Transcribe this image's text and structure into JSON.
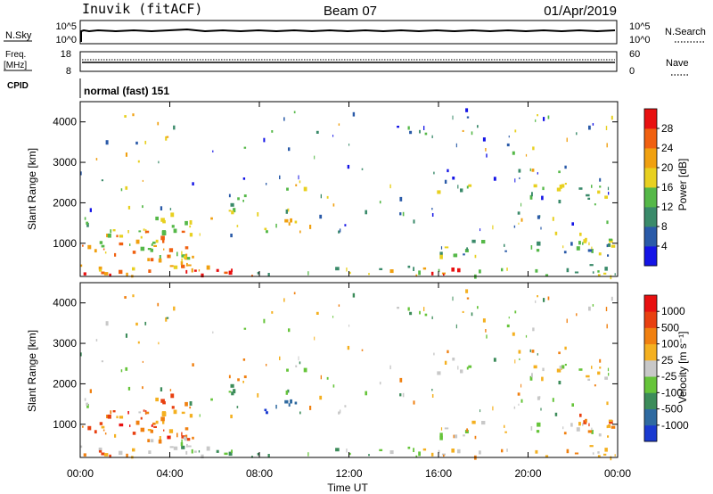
{
  "header": {
    "station": "Inuvik (fitACF)",
    "beam": "Beam 07",
    "date": "01/Apr/2019"
  },
  "strips": {
    "nsky": {
      "label": "N.Sky",
      "tick_top": "10^5",
      "tick_bottom": "10^0"
    },
    "nsearch": {
      "label": "N.Search",
      "tick_top": "10^5",
      "tick_bottom": "10^0"
    },
    "freq": {
      "label_line1": "Freq.",
      "label_line2": "[MHz]",
      "tick_top": "18",
      "tick_bottom": "8"
    },
    "nave": {
      "label": "Nave",
      "tick_top": "60",
      "tick_bottom": "0"
    },
    "cpid": {
      "label": "CPID",
      "value": "normal (fast) 151"
    }
  },
  "chart_data": [
    {
      "type": "heatmap",
      "quantity": "Power",
      "ylabel": "Slant Range [km]",
      "xlabel": "",
      "ylim": [
        180,
        4500
      ],
      "y_ticks": [
        "1000",
        "2000",
        "3000",
        "4000"
      ],
      "colorbar": {
        "label": "Power [dB]",
        "ticks": [
          "4",
          "8",
          "12",
          "16",
          "20",
          "24",
          "28"
        ],
        "colors": [
          "#1414e6",
          "#2a5aa8",
          "#3a8a6a",
          "#55b848",
          "#e8d020",
          "#f0a010",
          "#f06010",
          "#e81010"
        ]
      }
    },
    {
      "type": "heatmap",
      "quantity": "Velocity",
      "ylabel": "Slant Range [km]",
      "xlabel": "Time UT",
      "ylim": [
        180,
        4500
      ],
      "y_ticks": [
        "1000",
        "2000",
        "3000",
        "4000"
      ],
      "x_ticks": [
        "00:00",
        "04:00",
        "08:00",
        "12:00",
        "16:00",
        "20:00",
        "00:00"
      ],
      "colorbar": {
        "label": "Velocity [m s⁻¹]",
        "ticks": [
          "1000",
          "500",
          "100",
          "25",
          "-25",
          "-100",
          "-500",
          "-1000"
        ],
        "colors": [
          "#1a3ad0",
          "#2f6aa0",
          "#3c8c5a",
          "#66c43a",
          "#c8c8c8",
          "#f4b020",
          "#f08010",
          "#e84010",
          "#e81010"
        ]
      }
    }
  ]
}
